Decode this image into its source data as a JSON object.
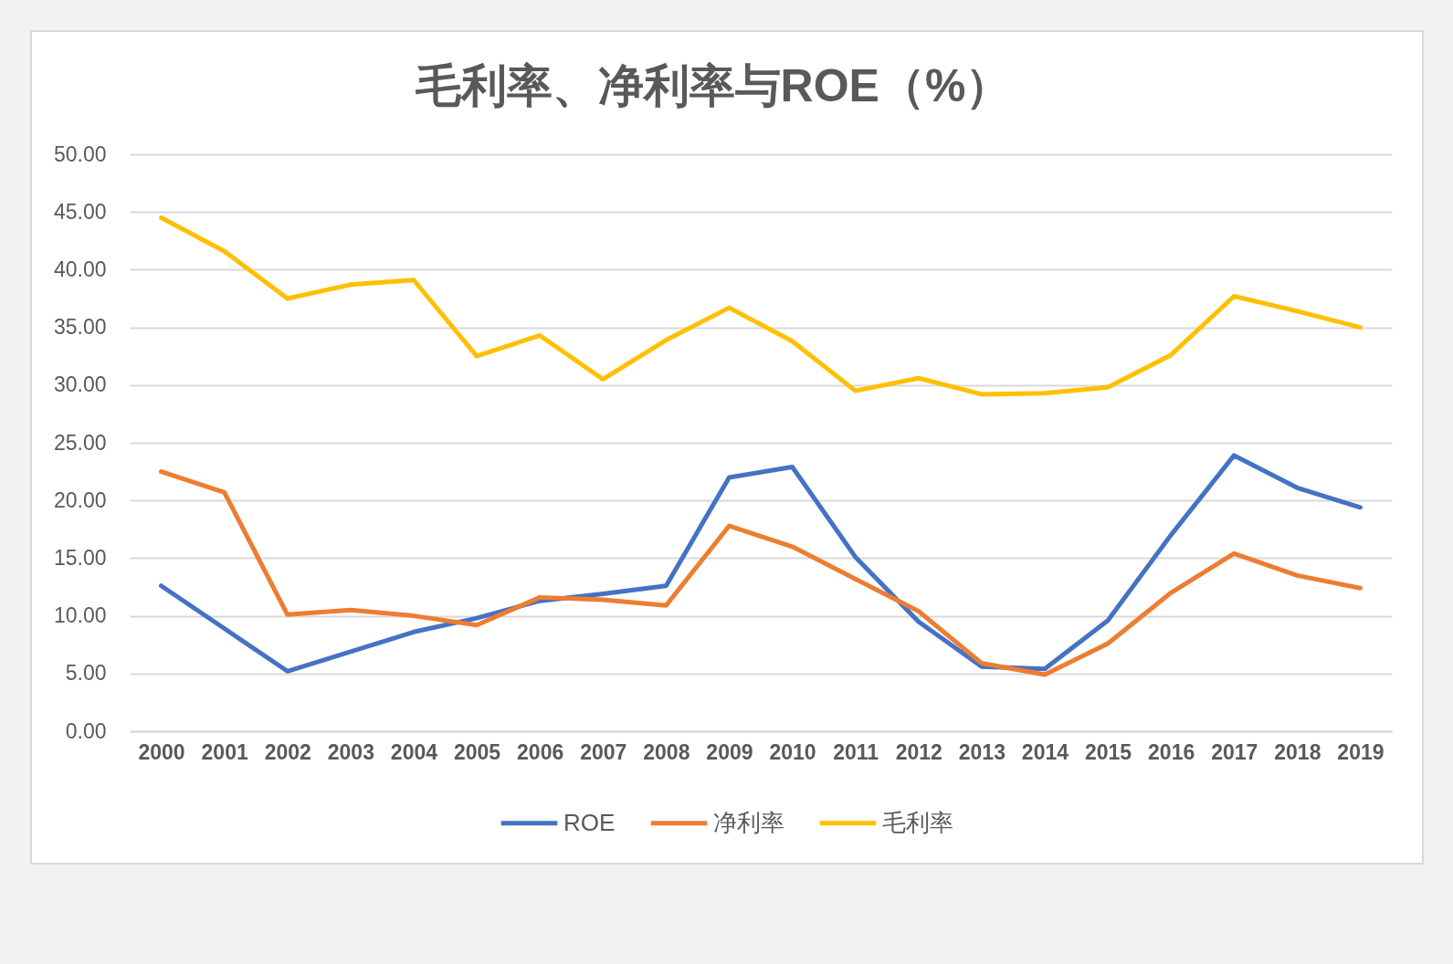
{
  "chart_data": {
    "type": "line",
    "title": "毛利率、净利率与ROE（%）",
    "categories": [
      "2000",
      "2001",
      "2002",
      "2003",
      "2004",
      "2005",
      "2006",
      "2007",
      "2008",
      "2009",
      "2010",
      "2011",
      "2012",
      "2013",
      "2014",
      "2015",
      "2016",
      "2017",
      "2018",
      "2019"
    ],
    "series": [
      {
        "name": "ROE",
        "color": "#4472c4",
        "values": [
          12.6,
          8.9,
          5.2,
          6.9,
          8.6,
          9.8,
          11.3,
          11.9,
          12.6,
          22.0,
          22.9,
          15.1,
          9.5,
          5.6,
          5.4,
          9.6,
          17.0,
          23.9,
          21.1,
          19.4
        ]
      },
      {
        "name": "净利率",
        "color": "#ed7d31",
        "values": [
          22.5,
          20.7,
          10.1,
          10.5,
          10.0,
          9.2,
          11.6,
          11.4,
          10.9,
          17.8,
          16.0,
          13.2,
          10.4,
          5.9,
          4.9,
          7.6,
          12.0,
          15.4,
          13.5,
          12.4
        ]
      },
      {
        "name": "毛利率",
        "color": "#ffc000",
        "values": [
          44.5,
          41.6,
          37.5,
          38.7,
          39.1,
          32.5,
          34.3,
          30.5,
          33.9,
          36.7,
          33.8,
          29.5,
          30.6,
          29.2,
          29.3,
          29.8,
          32.6,
          37.7,
          36.4,
          35.0
        ]
      }
    ],
    "ylim": [
      0,
      50
    ],
    "yticks": [
      {
        "value": 0,
        "label": "0.00"
      },
      {
        "value": 5,
        "label": "5.00"
      },
      {
        "value": 10,
        "label": "10.00"
      },
      {
        "value": 15,
        "label": "15.00"
      },
      {
        "value": 20,
        "label": "20.00"
      },
      {
        "value": 25,
        "label": "25.00"
      },
      {
        "value": 30,
        "label": "30.00"
      },
      {
        "value": 35,
        "label": "35.00"
      },
      {
        "value": 40,
        "label": "40.00"
      },
      {
        "value": 45,
        "label": "45.00"
      },
      {
        "value": 50,
        "label": "50.00"
      }
    ],
    "grid": "y",
    "legend": "bottom",
    "line_style": "solid"
  }
}
